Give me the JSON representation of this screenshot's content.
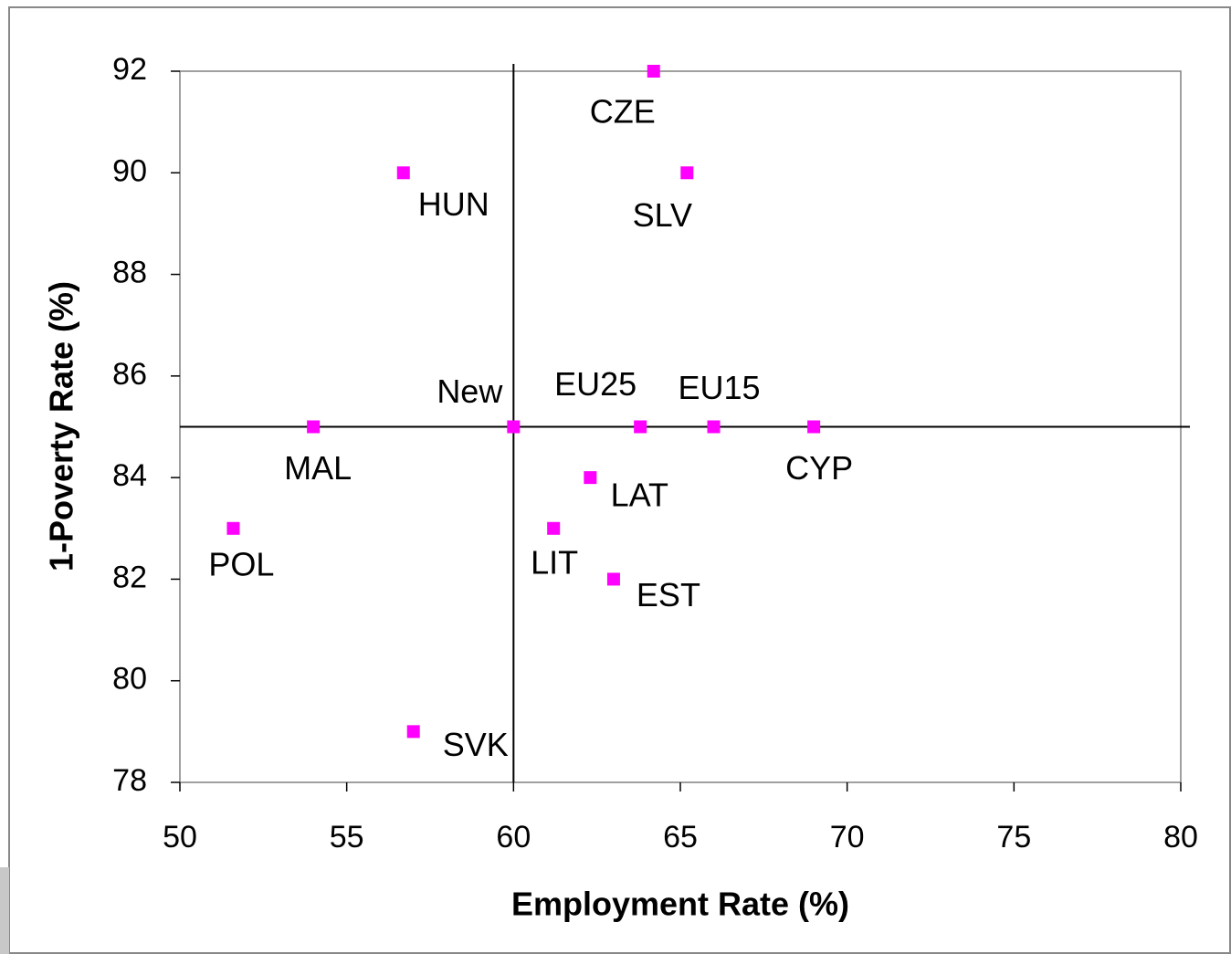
{
  "chart_data": {
    "type": "scatter",
    "x_label": "Employment Rate (%)",
    "y_label": "1-Poverty Rate (%)",
    "xlim": [
      50,
      80
    ],
    "xticks": [
      50,
      55,
      60,
      65,
      70,
      75,
      80
    ],
    "ylim": [
      78,
      92
    ],
    "yticks": [
      78,
      80,
      82,
      84,
      86,
      88,
      90,
      92
    ],
    "reference_lines": {
      "x": 60,
      "y": 85
    },
    "color": "#ff00ff",
    "point_labels": [
      "CZE",
      "HUN",
      "SLV",
      "MAL",
      "New",
      "EU25",
      "EU15",
      "CYP",
      "LAT",
      "POL",
      "LIT",
      "EST",
      "SVK"
    ],
    "x": [
      64.2,
      56.7,
      65.2,
      54.0,
      60.0,
      63.8,
      66.0,
      69.0,
      62.3,
      51.6,
      61.2,
      63.0,
      57.0
    ],
    "values": [
      92,
      90,
      90,
      85,
      85,
      85,
      85,
      85,
      84,
      83,
      83,
      82,
      79
    ]
  }
}
